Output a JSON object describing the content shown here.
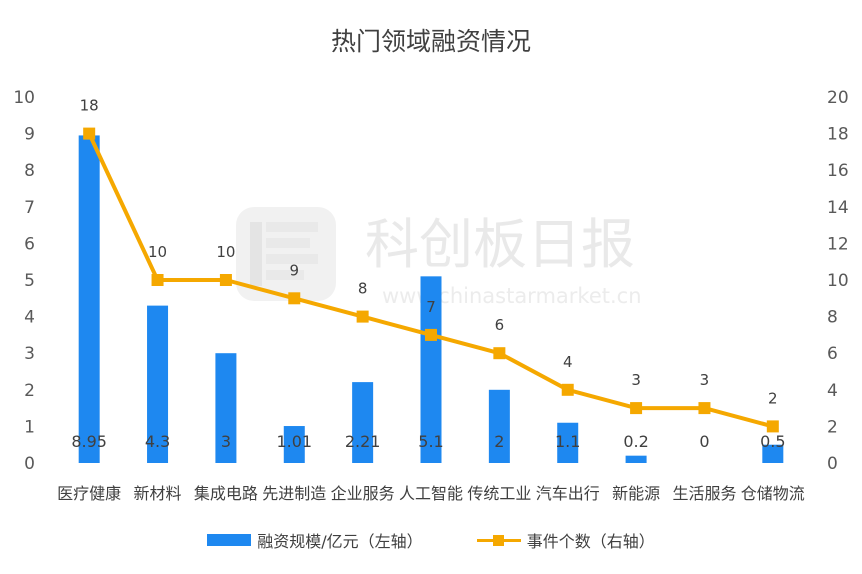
{
  "chart_data": {
    "type": "bar+line",
    "title": "热门领域融资情况",
    "categories": [
      "医疗健康",
      "新材料",
      "集成电路",
      "先进制造",
      "企业服务",
      "人工智能",
      "传统工业",
      "汽车出行",
      "新能源",
      "生活服务",
      "仓储物流"
    ],
    "series": [
      {
        "name": "融资规模/亿元（左轴）",
        "type": "bar",
        "axis": "left",
        "color": "#1e88f0",
        "values": [
          8.95,
          4.3,
          3,
          1.01,
          2.21,
          5.1,
          2,
          1.1,
          0.2,
          0,
          0.5
        ],
        "labels": [
          "8.95",
          "4.3",
          "3",
          "1.01",
          "2.21",
          "5.1",
          "2",
          "1.1",
          "0.2",
          "0",
          "0.5"
        ]
      },
      {
        "name": "事件个数（右轴）",
        "type": "line",
        "axis": "right",
        "color": "#f5a800",
        "values": [
          18,
          10,
          10,
          9,
          8,
          7,
          6,
          4,
          3,
          3,
          2
        ],
        "labels": [
          "18",
          "10",
          "10",
          "9",
          "8",
          "7",
          "6",
          "4",
          "3",
          "3",
          "2"
        ]
      }
    ],
    "y_left": {
      "range": [
        0,
        10
      ],
      "ticks": [
        "0",
        "1",
        "2",
        "3",
        "4",
        "5",
        "6",
        "7",
        "8",
        "9",
        "10"
      ]
    },
    "y_right": {
      "range": [
        0,
        20
      ],
      "ticks": [
        "0",
        "2",
        "4",
        "6",
        "8",
        "10",
        "12",
        "14",
        "16",
        "18",
        "20"
      ]
    },
    "grid": false,
    "legend": "bottom"
  },
  "watermark": {
    "text": "科创板日报",
    "url": "www.chinastarmarket.cn",
    "icon": "chinastar-logo-icon"
  }
}
